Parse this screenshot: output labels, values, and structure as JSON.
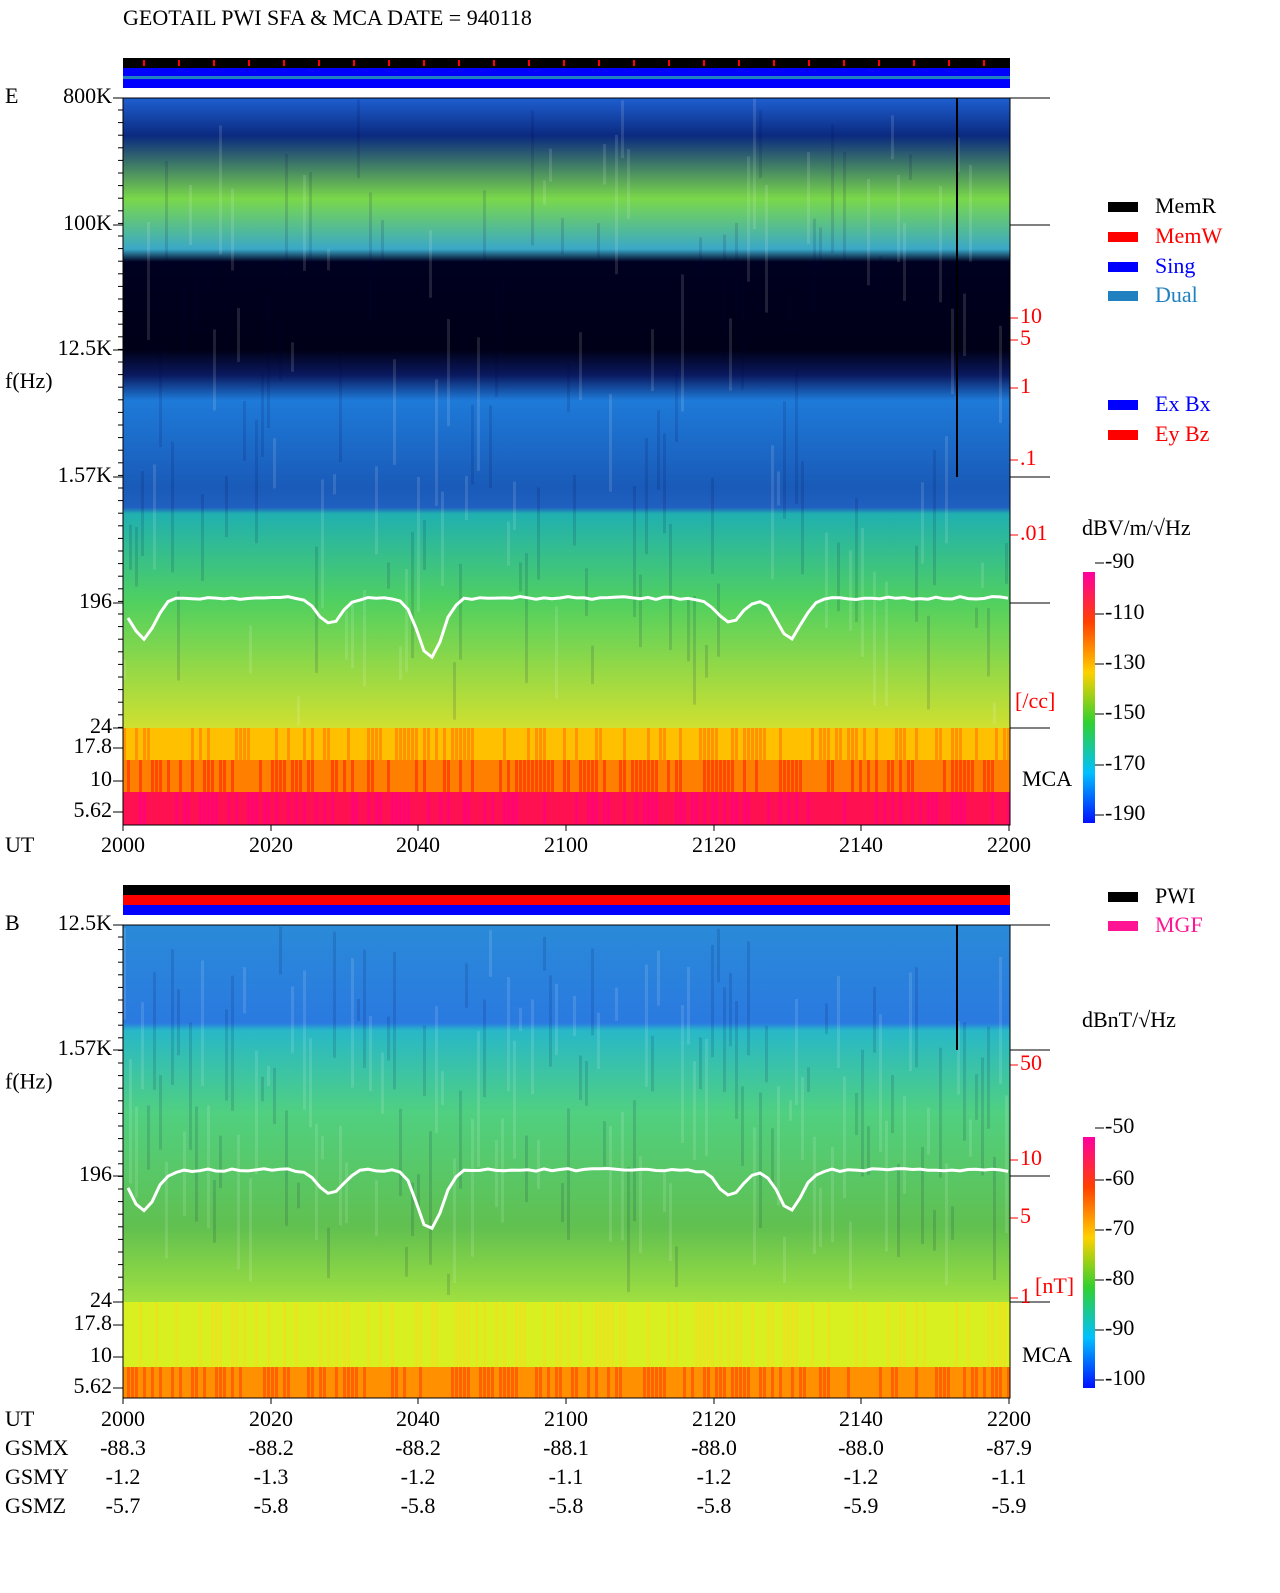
{
  "title": "GEOTAIL  PWI SFA & MCA   DATE = 940118",
  "panels": [
    {
      "component": "E",
      "freq_ticks": [
        "800K",
        "100K",
        "12.5K",
        "1.57K",
        196,
        24,
        17.8,
        10,
        5.62
      ],
      "y_label": "f(Hz)",
      "mca_label": "MCA",
      "right_ticks": [
        10,
        5,
        1,
        ".1",
        ".01"
      ],
      "right_unit": "[/cc]",
      "colorbar_title": "dBV/m/√Hz",
      "colorbar_ticks": [
        -90,
        -110,
        -130,
        -150,
        -170,
        -190
      ],
      "time_label": "UT",
      "time_ticks": [
        2000,
        2020,
        2040,
        2100,
        2120,
        2140,
        2200
      ]
    },
    {
      "component": "B",
      "freq_ticks": [
        "12.5K",
        "1.57K",
        196,
        24,
        17.8,
        10,
        5.62
      ],
      "y_label": "f(Hz)",
      "mca_label": "MCA",
      "right_ticks": [
        50,
        10,
        5,
        1
      ],
      "right_unit": "[nT]",
      "colorbar_title": "dBnT/√Hz",
      "colorbar_ticks": [
        -50,
        -60,
        -70,
        -80,
        -90,
        -100
      ],
      "time_label": "UT",
      "time_ticks": [
        2000,
        2020,
        2040,
        2100,
        2120,
        2140,
        2200
      ]
    }
  ],
  "legend_status": [
    {
      "label": "MemR",
      "color": "#000000"
    },
    {
      "label": "MemW",
      "color": "#ff0000"
    },
    {
      "label": "Sing",
      "color": "#0000ff"
    },
    {
      "label": "Dual",
      "color": "#2080c0"
    }
  ],
  "legend_antenna": [
    {
      "label": "Ex Bx",
      "color": "#0000ff"
    },
    {
      "label": "Ey Bz",
      "color": "#ff0000"
    }
  ],
  "legend_source": [
    {
      "label": "PWI",
      "color": "#000000"
    },
    {
      "label": "MGF",
      "color": "#ff1493"
    }
  ],
  "orbit": [
    {
      "label": "GSMX",
      "values": [
        "-88.3",
        "-88.2",
        "-88.2",
        "-88.1",
        "-88.0",
        "-88.0",
        "-87.9"
      ]
    },
    {
      "label": "GSMY",
      "values": [
        "-1.2",
        "-1.3",
        "-1.2",
        "-1.1",
        "-1.2",
        "-1.2",
        "-1.1"
      ]
    },
    {
      "label": "GSMZ",
      "values": [
        "-5.7",
        "-5.8",
        "-5.8",
        "-5.8",
        "-5.8",
        "-5.9",
        "-5.9"
      ]
    }
  ]
}
